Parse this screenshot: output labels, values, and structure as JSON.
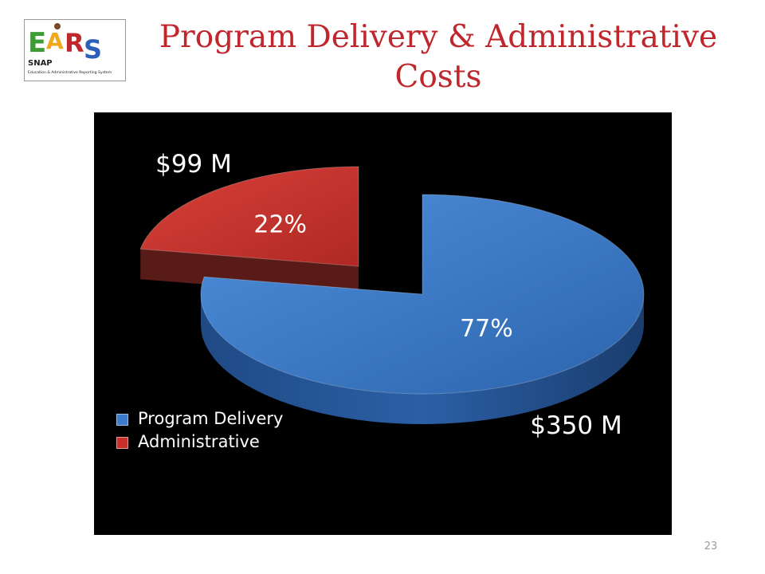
{
  "logo": {
    "letters": [
      "E",
      "A",
      "R",
      "S"
    ],
    "program": "SNAP",
    "subtitle": "Education & Administrative Reporting System"
  },
  "slide": {
    "title": "Program Delivery & Administrative Costs",
    "page_number": "23"
  },
  "colors": {
    "title": "#c0272d",
    "background": "#000000",
    "program_delivery": "#3d7ccd",
    "administrative": "#c9302c"
  },
  "chart_data": {
    "type": "pie",
    "style": "3d-exploded",
    "title": "",
    "legend_position": "bottom-left",
    "slices": [
      {
        "name": "Program Delivery",
        "percent": 77,
        "percent_label": "77%",
        "amount_label": "$350 M",
        "color": "#3d7ccd"
      },
      {
        "name": "Administrative",
        "percent": 22,
        "percent_label": "22%",
        "amount_label": "$99 M",
        "color": "#c9302c"
      }
    ]
  }
}
